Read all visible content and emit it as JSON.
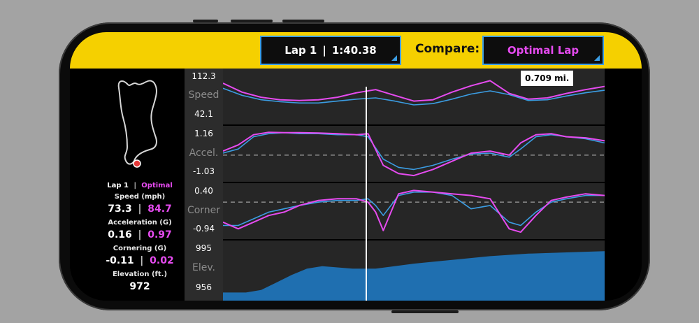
{
  "header": {
    "lap_label": "Lap 1",
    "separator": "|",
    "lap_time": "1:40.38",
    "compare_label": "Compare:",
    "compare_value": "Optimal Lap"
  },
  "stats": {
    "lap_name": "Lap 1",
    "optimal_name": "Optimal",
    "speed_label": "Speed (mph)",
    "speed_lap": "73.3",
    "speed_optimal": "84.7",
    "accel_label": "Acceleration (G)",
    "accel_lap": "0.16",
    "accel_optimal": "0.97",
    "corner_label": "Cornering (G)",
    "corner_lap": "-0.11",
    "corner_optimal": "0.02",
    "elev_label": "Elevation (ft.)",
    "elev_value": "972"
  },
  "cursor": {
    "distance_label": "0.709 mi."
  },
  "colors": {
    "header": "#f5d000",
    "lap": "#3b9de3",
    "optimal": "#e64bf0",
    "elevation_fill": "#1f6fb0"
  },
  "chart_data": [
    {
      "type": "line",
      "name": "Speed",
      "ylabel": "Speed",
      "ylim": [
        42.1,
        112.3
      ],
      "tick_labels": [
        "112.3",
        "42.1"
      ],
      "series": [
        {
          "name": "Lap 1",
          "x": [
            0,
            0.05,
            0.1,
            0.15,
            0.2,
            0.25,
            0.3,
            0.35,
            0.4,
            0.45,
            0.5,
            0.55,
            0.6,
            0.65,
            0.7,
            0.75,
            0.8,
            0.85,
            0.9,
            0.95,
            1.0
          ],
          "values": [
            90,
            79,
            72,
            69,
            67,
            67,
            70,
            73,
            75,
            70,
            64,
            66,
            73,
            81,
            86,
            80,
            71,
            72,
            78,
            83,
            87
          ]
        },
        {
          "name": "Optimal",
          "x": [
            0,
            0.05,
            0.1,
            0.15,
            0.2,
            0.25,
            0.3,
            0.35,
            0.4,
            0.45,
            0.5,
            0.55,
            0.6,
            0.65,
            0.7,
            0.75,
            0.8,
            0.85,
            0.9,
            0.95,
            1.0
          ],
          "values": [
            98,
            84,
            76,
            72,
            71,
            72,
            76,
            83,
            88,
            79,
            70,
            72,
            84,
            94,
            102,
            82,
            73,
            75,
            82,
            88,
            93
          ]
        }
      ]
    },
    {
      "type": "line",
      "name": "Accel.",
      "ylabel": "Accel.",
      "ylim": [
        -1.03,
        1.16
      ],
      "tick_labels": [
        "1.16",
        "-1.03"
      ],
      "series": [
        {
          "name": "Lap 1",
          "x": [
            0,
            0.04,
            0.08,
            0.12,
            0.16,
            0.2,
            0.25,
            0.3,
            0.35,
            0.38,
            0.42,
            0.46,
            0.5,
            0.55,
            0.6,
            0.65,
            0.7,
            0.75,
            0.78,
            0.82,
            0.86,
            0.9,
            0.95,
            1.0
          ],
          "values": [
            0.1,
            0.3,
            0.9,
            1.05,
            1.1,
            1.05,
            1.05,
            1.0,
            1.0,
            0.9,
            -0.2,
            -0.6,
            -0.7,
            -0.5,
            -0.2,
            0.05,
            0.1,
            -0.1,
            0.3,
            0.9,
            1.0,
            0.9,
            0.8,
            0.6
          ]
        },
        {
          "name": "Optimal",
          "x": [
            0,
            0.04,
            0.08,
            0.12,
            0.16,
            0.2,
            0.25,
            0.3,
            0.35,
            0.38,
            0.42,
            0.46,
            0.5,
            0.55,
            0.6,
            0.65,
            0.7,
            0.75,
            0.78,
            0.82,
            0.86,
            0.9,
            0.95,
            1.0
          ],
          "values": [
            0.2,
            0.5,
            1.0,
            1.12,
            1.1,
            1.1,
            1.08,
            1.05,
            1.0,
            1.05,
            -0.5,
            -0.9,
            -1.0,
            -0.7,
            -0.3,
            0.1,
            0.2,
            0.0,
            0.6,
            1.0,
            1.05,
            0.9,
            0.85,
            0.7
          ]
        }
      ]
    },
    {
      "type": "line",
      "name": "Corner",
      "ylabel": "Corner",
      "ylim": [
        -0.94,
        0.4
      ],
      "tick_labels": [
        "0.40",
        "-0.94"
      ],
      "series": [
        {
          "name": "Lap 1",
          "x": [
            0,
            0.04,
            0.08,
            0.12,
            0.16,
            0.2,
            0.25,
            0.3,
            0.35,
            0.38,
            0.4,
            0.42,
            0.46,
            0.5,
            0.55,
            0.6,
            0.65,
            0.7,
            0.75,
            0.78,
            0.82,
            0.86,
            0.9,
            0.95,
            1.0
          ],
          "values": [
            -0.7,
            -0.7,
            -0.5,
            -0.3,
            -0.2,
            -0.1,
            0.0,
            0.05,
            0.05,
            0.1,
            -0.1,
            -0.4,
            0.2,
            0.3,
            0.3,
            0.2,
            -0.2,
            -0.1,
            -0.6,
            -0.7,
            -0.3,
            0.0,
            0.1,
            0.2,
            0.2
          ]
        },
        {
          "name": "Optimal",
          "x": [
            0,
            0.04,
            0.08,
            0.12,
            0.16,
            0.2,
            0.25,
            0.3,
            0.35,
            0.38,
            0.4,
            0.42,
            0.46,
            0.5,
            0.55,
            0.6,
            0.65,
            0.7,
            0.75,
            0.78,
            0.82,
            0.86,
            0.9,
            0.95,
            1.0
          ],
          "values": [
            -0.6,
            -0.8,
            -0.6,
            -0.4,
            -0.3,
            -0.1,
            0.05,
            0.1,
            0.1,
            0.0,
            -0.3,
            -0.85,
            0.25,
            0.35,
            0.3,
            0.25,
            0.2,
            0.1,
            -0.8,
            -0.9,
            -0.4,
            0.05,
            0.15,
            0.25,
            0.2
          ]
        }
      ]
    },
    {
      "type": "area",
      "name": "Elev.",
      "ylabel": "Elev.",
      "ylim": [
        956,
        995
      ],
      "tick_labels": [
        "995",
        "956"
      ],
      "series": [
        {
          "name": "Elevation",
          "x": [
            0,
            0.06,
            0.1,
            0.14,
            0.18,
            0.22,
            0.26,
            0.3,
            0.34,
            0.4,
            0.5,
            0.6,
            0.7,
            0.8,
            0.9,
            1.0
          ],
          "values": [
            958,
            958,
            960,
            966,
            972,
            977,
            979,
            978,
            977,
            977,
            981,
            984,
            987,
            989,
            990,
            991
          ]
        }
      ]
    }
  ]
}
